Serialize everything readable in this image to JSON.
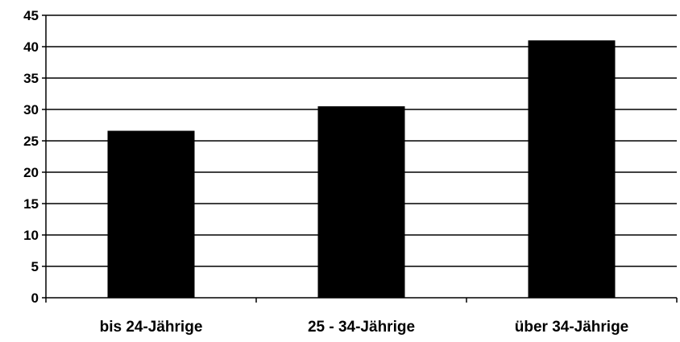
{
  "chart_data": {
    "type": "bar",
    "title": "",
    "xlabel": "",
    "ylabel": "",
    "categories": [
      "bis 24-Jährige",
      "25 - 34-Jährige",
      "über 34-Jährige"
    ],
    "values": [
      26.6,
      30.5,
      41.0
    ],
    "ylim": [
      0,
      45
    ],
    "y_ticks": [
      "0",
      "5",
      "10",
      "15",
      "20",
      "25",
      "30",
      "35",
      "40",
      "45"
    ],
    "grid": true,
    "legend": "none",
    "bar_color": "#000000",
    "grid_color": "#000000",
    "axis_color": "#000000"
  }
}
